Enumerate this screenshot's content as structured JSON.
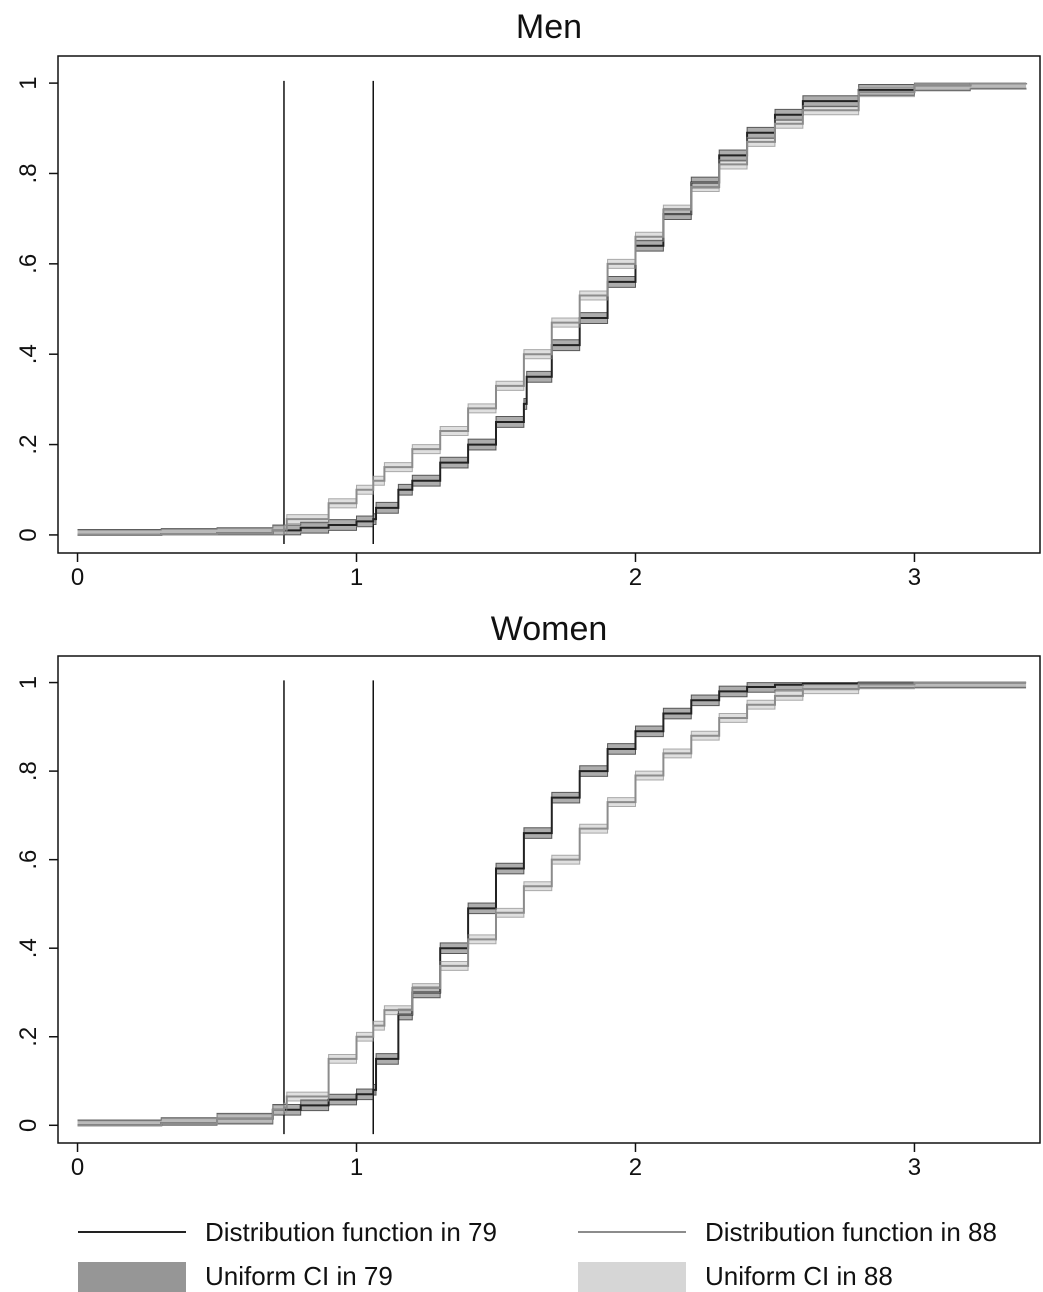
{
  "chart_data": [
    {
      "type": "line",
      "title": "Men",
      "xlabel": "",
      "ylabel": "",
      "xlim": [
        -0.07,
        3.45
      ],
      "ylim": [
        -0.04,
        1.06
      ],
      "x_ticks": [
        "0",
        "1",
        "2",
        "3"
      ],
      "y_ticks": [
        "0",
        ".2",
        ".4",
        ".6",
        ".8",
        "1"
      ],
      "vlines": [
        0.74,
        1.06
      ],
      "series": [
        {
          "name": "Distribution function in 79",
          "color": "#222222",
          "ci_color": "#6a6a6a",
          "ci_halfwidth": 0.012,
          "x": [
            0.0,
            0.3,
            0.5,
            0.7,
            0.8,
            0.9,
            1.0,
            1.06,
            1.07,
            1.15,
            1.2,
            1.3,
            1.4,
            1.5,
            1.6,
            1.61,
            1.7,
            1.8,
            1.9,
            2.0,
            2.1,
            2.2,
            2.3,
            2.4,
            2.5,
            2.6,
            2.8,
            3.0,
            3.2,
            3.4
          ],
          "y": [
            0.0,
            0.002,
            0.004,
            0.01,
            0.016,
            0.022,
            0.03,
            0.035,
            0.06,
            0.1,
            0.12,
            0.16,
            0.2,
            0.25,
            0.29,
            0.35,
            0.42,
            0.48,
            0.56,
            0.64,
            0.71,
            0.78,
            0.84,
            0.89,
            0.93,
            0.96,
            0.985,
            0.995,
            0.999,
            1.0
          ]
        },
        {
          "name": "Distribution function in 88",
          "color": "#8c8c8c",
          "ci_color": "#c4c4c4",
          "ci_halfwidth": 0.01,
          "x": [
            0.0,
            0.3,
            0.5,
            0.7,
            0.74,
            0.75,
            0.9,
            1.0,
            1.06,
            1.1,
            1.2,
            1.3,
            1.4,
            1.5,
            1.6,
            1.7,
            1.8,
            1.9,
            2.0,
            2.1,
            2.2,
            2.3,
            2.4,
            2.5,
            2.6,
            2.8,
            3.0,
            3.2,
            3.4
          ],
          "y": [
            0.0,
            0.002,
            0.004,
            0.01,
            0.012,
            0.035,
            0.07,
            0.1,
            0.12,
            0.15,
            0.19,
            0.23,
            0.28,
            0.33,
            0.4,
            0.47,
            0.53,
            0.6,
            0.66,
            0.72,
            0.77,
            0.82,
            0.87,
            0.91,
            0.94,
            0.98,
            0.995,
            0.999,
            1.0
          ]
        }
      ]
    },
    {
      "type": "line",
      "title": "Women",
      "xlabel": "",
      "ylabel": "",
      "xlim": [
        -0.07,
        3.45
      ],
      "ylim": [
        -0.04,
        1.06
      ],
      "x_ticks": [
        "0",
        "1",
        "2",
        "3"
      ],
      "y_ticks": [
        "0",
        ".2",
        ".4",
        ".6",
        ".8",
        "1"
      ],
      "vlines": [
        0.74,
        1.06
      ],
      "series": [
        {
          "name": "Distribution function in 79",
          "color": "#222222",
          "ci_color": "#6a6a6a",
          "ci_halfwidth": 0.012,
          "x": [
            0.0,
            0.3,
            0.5,
            0.7,
            0.8,
            0.9,
            1.0,
            1.06,
            1.07,
            1.15,
            1.2,
            1.3,
            1.4,
            1.5,
            1.6,
            1.7,
            1.8,
            1.9,
            2.0,
            2.1,
            2.2,
            2.3,
            2.4,
            2.5,
            2.6,
            2.8,
            3.0,
            3.4
          ],
          "y": [
            0.0,
            0.005,
            0.015,
            0.035,
            0.045,
            0.058,
            0.07,
            0.08,
            0.15,
            0.25,
            0.3,
            0.4,
            0.49,
            0.58,
            0.66,
            0.74,
            0.8,
            0.85,
            0.89,
            0.93,
            0.96,
            0.98,
            0.99,
            0.995,
            0.998,
            1.0,
            1.0,
            1.0
          ]
        },
        {
          "name": "Distribution function in 88",
          "color": "#8c8c8c",
          "ci_color": "#c4c4c4",
          "ci_halfwidth": 0.01,
          "x": [
            0.0,
            0.3,
            0.5,
            0.7,
            0.74,
            0.75,
            0.9,
            1.0,
            1.06,
            1.1,
            1.2,
            1.3,
            1.4,
            1.5,
            1.6,
            1.7,
            1.8,
            1.9,
            2.0,
            2.1,
            2.2,
            2.3,
            2.4,
            2.5,
            2.6,
            2.8,
            3.0,
            3.4
          ],
          "y": [
            0.0,
            0.005,
            0.015,
            0.035,
            0.04,
            0.065,
            0.15,
            0.2,
            0.225,
            0.26,
            0.31,
            0.36,
            0.42,
            0.48,
            0.54,
            0.6,
            0.67,
            0.73,
            0.79,
            0.84,
            0.88,
            0.92,
            0.95,
            0.97,
            0.985,
            0.996,
            1.0,
            1.0
          ]
        }
      ]
    }
  ],
  "legend": {
    "items": [
      {
        "label": "Distribution function in 79",
        "kind": "line",
        "color": "#222222"
      },
      {
        "label": "Distribution function in 88",
        "kind": "line",
        "color": "#8c8c8c"
      },
      {
        "label": "Uniform CI in 79",
        "kind": "band",
        "color": "#6a6a6a"
      },
      {
        "label": "Uniform CI in 88",
        "kind": "band",
        "color": "#c4c4c4"
      }
    ]
  }
}
